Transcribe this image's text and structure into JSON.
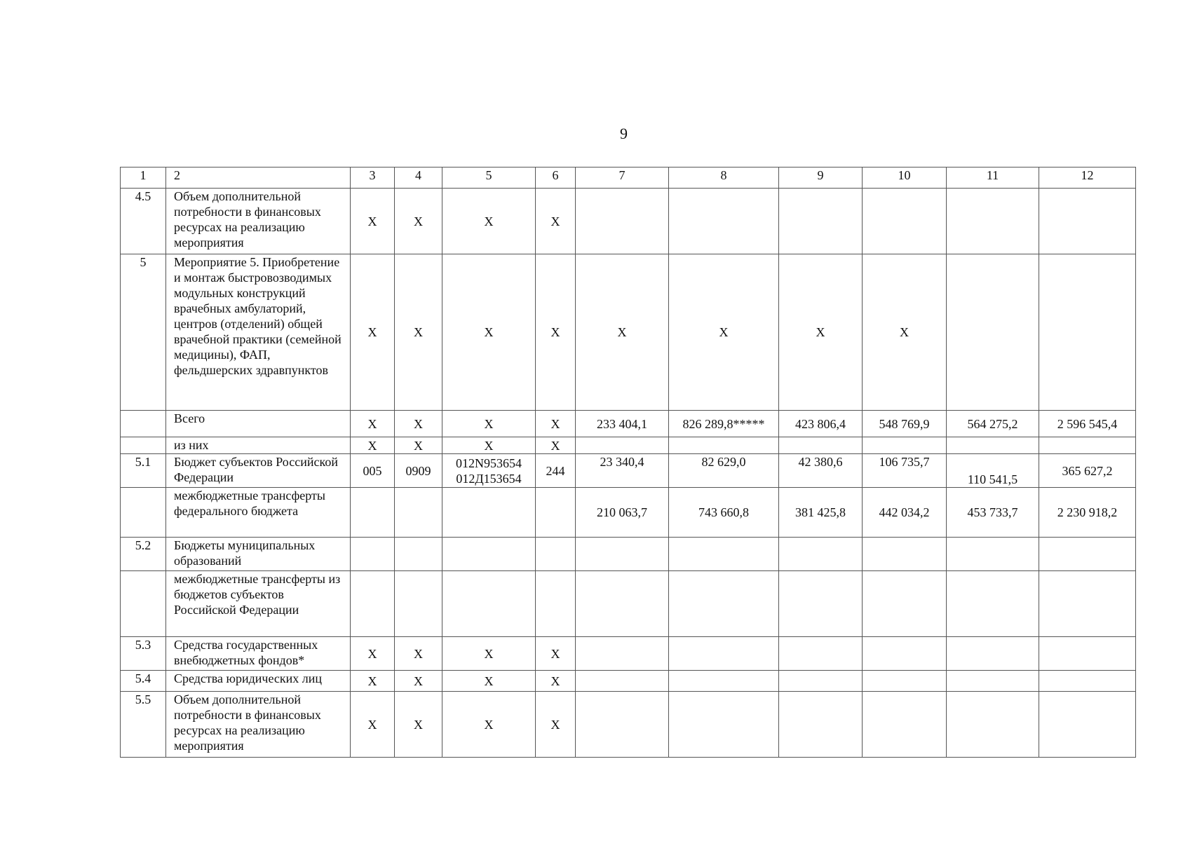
{
  "page_number": "9",
  "table": {
    "header": [
      "1",
      "2",
      "3",
      "4",
      "5",
      "6",
      "7",
      "8",
      "9",
      "10",
      "11",
      "12"
    ],
    "rows": [
      [
        "4.5",
        "Объем дополнительной потребности в финансовых ресурсах на реализацию мероприятия",
        "X",
        "X",
        "X",
        "X",
        "",
        "",
        "",
        "",
        "",
        ""
      ],
      [
        "5",
        "Мероприятие 5. Приобретение и монтаж быстровозводимых модульных конструкций врачебных амбулаторий, центров (отделений) общей врачебной практики (семейной медицины), ФАП, фельдшерских здравпунктов",
        "X",
        "X",
        "X",
        "X",
        "X",
        "X",
        "X",
        "X",
        "",
        ""
      ],
      [
        "",
        "Всего",
        "X",
        "X",
        "X",
        "X",
        "233 404,1",
        "826 289,8*****",
        "423 806,4",
        "548 769,9",
        "564 275,2",
        "2 596 545,4"
      ],
      [
        "",
        "из них",
        "X",
        "X",
        "X",
        "X",
        "",
        "",
        "",
        "",
        "",
        ""
      ],
      [
        "5.1",
        "Бюджет субъектов Российской Федерации",
        "005",
        "0909",
        "012N953654\n012Д153654",
        "244",
        "23 340,4",
        "82 629,0",
        "42 380,6",
        "106 735,7",
        "110 541,5",
        "365 627,2"
      ],
      [
        "",
        "межбюджетные трансферты федерального бюджета",
        "",
        "",
        "",
        "",
        "210 063,7",
        "743 660,8",
        "381 425,8",
        "442 034,2",
        "453 733,7",
        "2 230 918,2"
      ],
      [
        "5.2",
        "Бюджеты муниципальных образований",
        "",
        "",
        "",
        "",
        "",
        "",
        "",
        "",
        "",
        ""
      ],
      [
        "",
        "межбюджетные трансферты из бюджетов субъектов Российской Федерации",
        "",
        "",
        "",
        "",
        "",
        "",
        "",
        "",
        "",
        ""
      ],
      [
        "5.3",
        "Средства государственных внебюджетных фондов*",
        "X",
        "X",
        "X",
        "X",
        "",
        "",
        "",
        "",
        "",
        ""
      ],
      [
        "5.4",
        "Средства юридических лиц",
        "X",
        "X",
        "X",
        "X",
        "",
        "",
        "",
        "",
        "",
        ""
      ],
      [
        "5.5",
        "Объем дополнительной потребности в финансовых ресурсах на реализацию мероприятия",
        "X",
        "X",
        "X",
        "X",
        "",
        "",
        "",
        "",
        "",
        ""
      ]
    ]
  }
}
